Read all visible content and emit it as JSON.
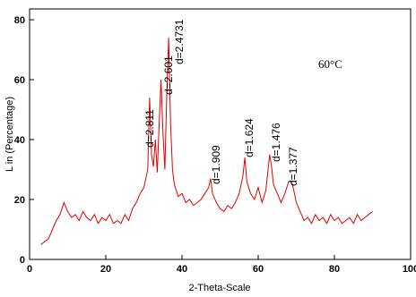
{
  "chart_data": {
    "type": "line",
    "xlabel": "2-Theta-Scale",
    "ylabel": "L in (Percentage)",
    "annotations": [
      "d=2.811",
      "d=2.601",
      "d=2.4731",
      "d=1.909",
      "d=1.624",
      "d=1.476",
      "d=1.377",
      "60°C"
    ],
    "color": "#e00000",
    "x": [
      3,
      4,
      5,
      6,
      7,
      8,
      9,
      10,
      11,
      12,
      13,
      14,
      15,
      16,
      17,
      18,
      19,
      20,
      21,
      22,
      23,
      24,
      25,
      26,
      27,
      28,
      29,
      30,
      31,
      31.5,
      32,
      32.5,
      33,
      33.5,
      34,
      34.5,
      35,
      35.5,
      36,
      36.5,
      37,
      37.5,
      38,
      39,
      40,
      41,
      42,
      43,
      44,
      45,
      46,
      47,
      47.5,
      48,
      49,
      50,
      51,
      52,
      53,
      54,
      55,
      56,
      56.5,
      57,
      58,
      59,
      60,
      61,
      62,
      63,
      63.5,
      64,
      65,
      66,
      67,
      68,
      68.5,
      69,
      70,
      71,
      72,
      73,
      74,
      75,
      76,
      77,
      78,
      79,
      80,
      81,
      82,
      83,
      84,
      85,
      86,
      87,
      88,
      89,
      90
    ],
    "values": [
      5,
      6,
      7,
      10,
      13,
      15,
      19,
      16,
      14,
      15,
      13,
      16,
      14,
      13,
      15,
      12,
      14,
      13,
      15,
      12,
      13,
      12,
      15,
      13,
      17,
      19,
      22,
      24,
      30,
      54,
      35,
      31,
      40,
      29,
      45,
      60,
      42,
      30,
      55,
      74,
      45,
      30,
      25,
      21,
      22,
      19,
      20,
      18,
      19,
      20,
      22,
      24,
      27,
      22,
      19,
      17,
      16,
      18,
      17,
      19,
      22,
      28,
      34,
      26,
      22,
      20,
      24,
      19,
      23,
      35,
      31,
      25,
      22,
      19,
      22,
      26,
      26,
      25,
      19,
      16,
      13,
      14,
      12,
      15,
      13,
      14,
      12,
      15,
      13,
      14,
      12,
      13,
      14,
      12,
      15,
      13,
      14,
      15,
      16
    ],
    "xlim": [
      0,
      100
    ],
    "xticks": [
      0,
      20,
      40,
      60,
      80,
      100
    ],
    "ylim": [
      0,
      83.6
    ],
    "yticks": [
      0,
      20,
      40,
      60,
      80
    ]
  }
}
